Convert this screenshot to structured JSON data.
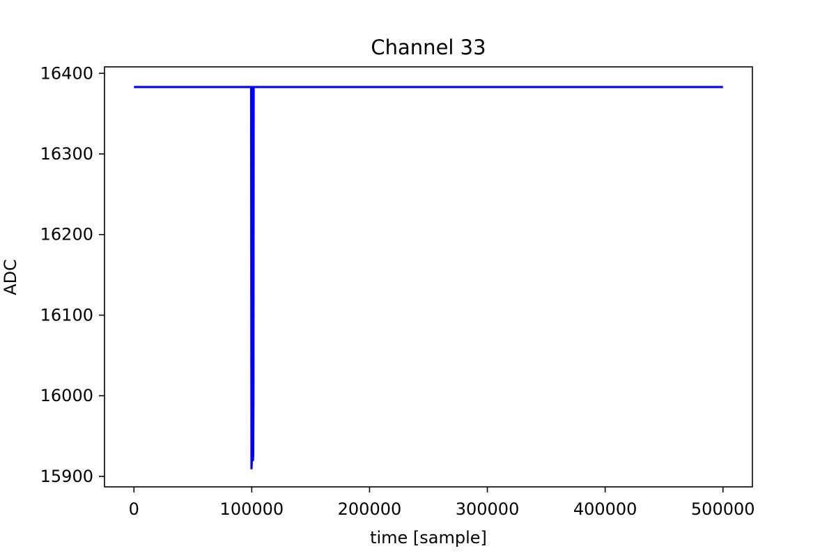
{
  "chart_data": {
    "type": "line",
    "title": "Channel 33",
    "xlabel": "time [sample]",
    "ylabel": "ADC",
    "xlim": [
      -25000,
      525000
    ],
    "ylim": [
      15887,
      16408
    ],
    "x_ticks": [
      0,
      100000,
      200000,
      300000,
      400000,
      500000
    ],
    "y_ticks": [
      15900,
      16000,
      16100,
      16200,
      16300,
      16400
    ],
    "grid": false,
    "legend": "none",
    "series": [
      {
        "color": "#0000ff",
        "points": [
          [
            0,
            16383
          ],
          [
            99500,
            16383
          ],
          [
            99800,
            15910
          ],
          [
            100000,
            15918
          ],
          [
            100300,
            15935
          ],
          [
            100500,
            16383
          ],
          [
            100800,
            16383
          ],
          [
            101000,
            15920
          ],
          [
            101200,
            15925
          ],
          [
            101400,
            16000
          ],
          [
            101600,
            16383
          ],
          [
            500000,
            16383
          ]
        ]
      }
    ]
  }
}
